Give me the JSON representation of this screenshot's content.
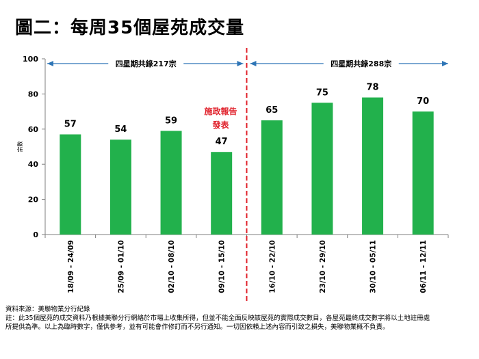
{
  "title": "圖二：每周35個屋苑成交量",
  "chart_data": {
    "type": "bar",
    "categories": [
      "18/09 - 24/09",
      "25/09 - 01/10",
      "02/10 - 08/10",
      "09/10 - 15/10",
      "16/10 - 22/10",
      "23/10 - 29/10",
      "30/10 - 05/11",
      "06/11 - 12/11"
    ],
    "values": [
      57,
      54,
      59,
      47,
      65,
      75,
      78,
      70
    ],
    "ylabel": "宗數",
    "ylim": [
      0,
      100
    ],
    "yticks": [
      0,
      20,
      40,
      60,
      80,
      100
    ],
    "bar_color": "#22b14c",
    "grid": false,
    "divider_after_index": 3,
    "divider_color": "#e0202a",
    "divider_label": [
      "施政報告",
      "發表"
    ],
    "left_span_label": "四星期共錄217宗",
    "right_span_label": "四星期共錄288宗",
    "arrow_color": "#2e75b6"
  },
  "footer": {
    "source": "資料來源：美聯物業分行紀錄",
    "note_line1": "註：此35個屋苑的成交資料乃根據美聯分行網絡於市場上收集所得，但並不能全面反映該屋苑的實際成交數目，各屋苑最終成交數字將以土地註冊處",
    "note_line2": "所提供為準。以上為臨時數字，僅供參考，並有可能會作修訂而不另行通知。一切因依賴上述內容而引致之損失，美聯物業概不負責。"
  }
}
